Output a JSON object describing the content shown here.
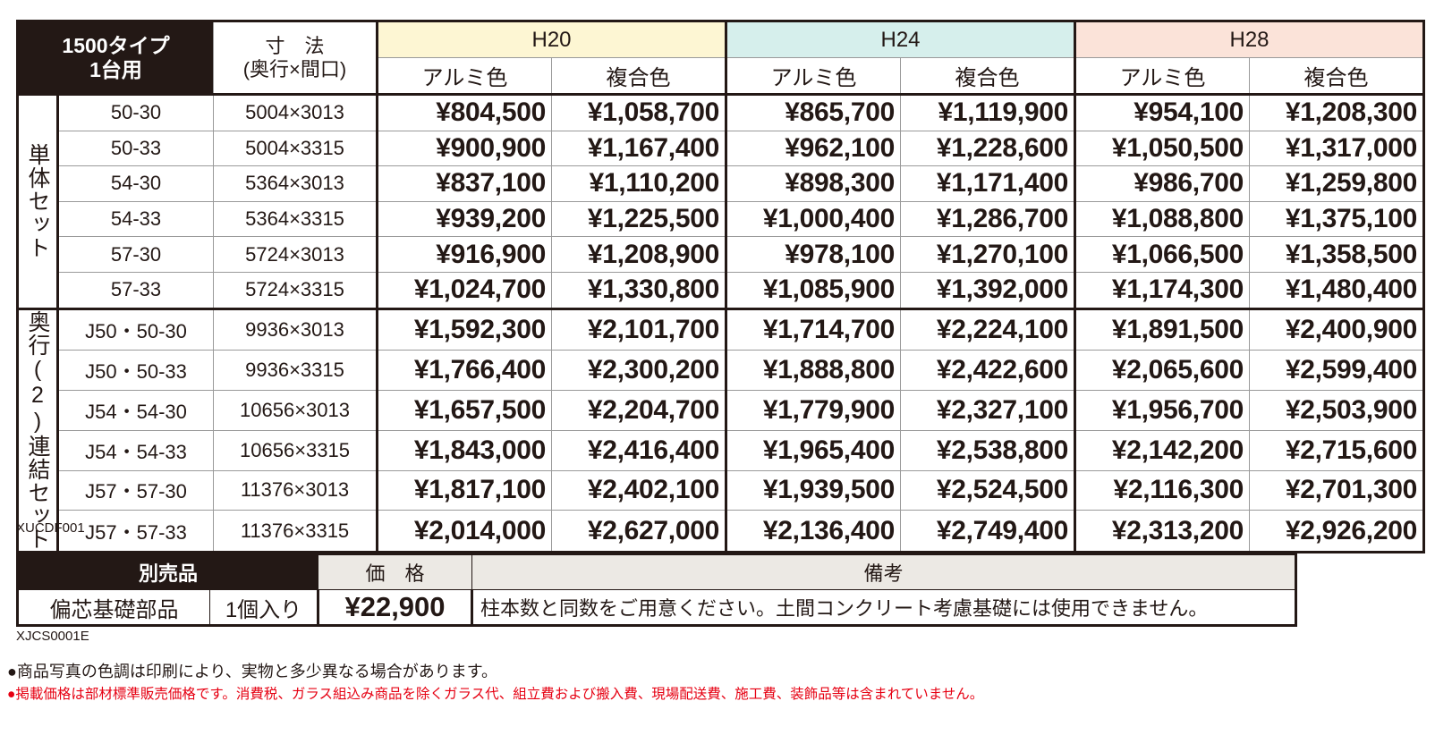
{
  "main_table": {
    "header_lines": [
      "1500タイプ",
      "1台用"
    ],
    "size_lines": [
      "寸　法",
      "(奥行×間口)"
    ],
    "heights": [
      {
        "name": "H20",
        "color": "#fdf6d3",
        "finishes": [
          "アルミ色",
          "複合色"
        ]
      },
      {
        "name": "H24",
        "color": "#d6efec",
        "finishes": [
          "アルミ色",
          "複合色"
        ]
      },
      {
        "name": "H28",
        "color": "#fbe3d9",
        "finishes": [
          "アルミ色",
          "複合色"
        ]
      }
    ],
    "groups": [
      {
        "label": "単体セット",
        "rows": [
          {
            "model": "50-30",
            "size": "5004×3013",
            "prices": [
              "¥804,500",
              "¥1,058,700",
              "¥865,700",
              "¥1,119,900",
              "¥954,100",
              "¥1,208,300"
            ]
          },
          {
            "model": "50-33",
            "size": "5004×3315",
            "prices": [
              "¥900,900",
              "¥1,167,400",
              "¥962,100",
              "¥1,228,600",
              "¥1,050,500",
              "¥1,317,000"
            ]
          },
          {
            "model": "54-30",
            "size": "5364×3013",
            "prices": [
              "¥837,100",
              "¥1,110,200",
              "¥898,300",
              "¥1,171,400",
              "¥986,700",
              "¥1,259,800"
            ]
          },
          {
            "model": "54-33",
            "size": "5364×3315",
            "prices": [
              "¥939,200",
              "¥1,225,500",
              "¥1,000,400",
              "¥1,286,700",
              "¥1,088,800",
              "¥1,375,100"
            ]
          },
          {
            "model": "57-30",
            "size": "5724×3013",
            "prices": [
              "¥916,900",
              "¥1,208,900",
              "¥978,100",
              "¥1,270,100",
              "¥1,066,500",
              "¥1,358,500"
            ]
          },
          {
            "model": "57-33",
            "size": "5724×3315",
            "prices": [
              "¥1,024,700",
              "¥1,330,800",
              "¥1,085,900",
              "¥1,392,000",
              "¥1,174,300",
              "¥1,480,400"
            ]
          }
        ]
      },
      {
        "label": "奥行(2)連結セット",
        "rows": [
          {
            "model": "J50・50-30",
            "size": "9936×3013",
            "prices": [
              "¥1,592,300",
              "¥2,101,700",
              "¥1,714,700",
              "¥2,224,100",
              "¥1,891,500",
              "¥2,400,900"
            ]
          },
          {
            "model": "J50・50-33",
            "size": "9936×3315",
            "prices": [
              "¥1,766,400",
              "¥2,300,200",
              "¥1,888,800",
              "¥2,422,600",
              "¥2,065,600",
              "¥2,599,400"
            ]
          },
          {
            "model": "J54・54-30",
            "size": "10656×3013",
            "prices": [
              "¥1,657,500",
              "¥2,204,700",
              "¥1,779,900",
              "¥2,327,100",
              "¥1,956,700",
              "¥2,503,900"
            ]
          },
          {
            "model": "J54・54-33",
            "size": "10656×3315",
            "prices": [
              "¥1,843,000",
              "¥2,416,400",
              "¥1,965,400",
              "¥2,538,800",
              "¥2,142,200",
              "¥2,715,600"
            ]
          },
          {
            "model": "J57・57-30",
            "size": "11376×3013",
            "prices": [
              "¥1,817,100",
              "¥2,402,100",
              "¥1,939,500",
              "¥2,524,500",
              "¥2,116,300",
              "¥2,701,300"
            ]
          },
          {
            "model": "J57・57-33",
            "size": "11376×3315",
            "prices": [
              "¥2,014,000",
              "¥2,627,000",
              "¥2,136,400",
              "¥2,749,400",
              "¥2,313,200",
              "¥2,926,200"
            ]
          }
        ]
      }
    ],
    "code": "XUCDF001"
  },
  "option_table": {
    "headers": [
      "別売品",
      "価　格",
      "備考"
    ],
    "row": {
      "name": "偏芯基礎部品",
      "quantity": "1個入り",
      "price": "¥22,900",
      "note": "柱本数と同数をご用意ください。土間コンクリート考慮基礎には使用できません。"
    },
    "code": "XJCS0001E"
  },
  "notes": [
    "●商品写真の色調は印刷により、実物と多少異なる場合があります。",
    "●掲載価格は部材標準販売価格です。消費税、ガラス組込み商品を除くガラス代、組立費および搬入費、現場配送費、施工費、装飾品等は含まれていません。"
  ]
}
